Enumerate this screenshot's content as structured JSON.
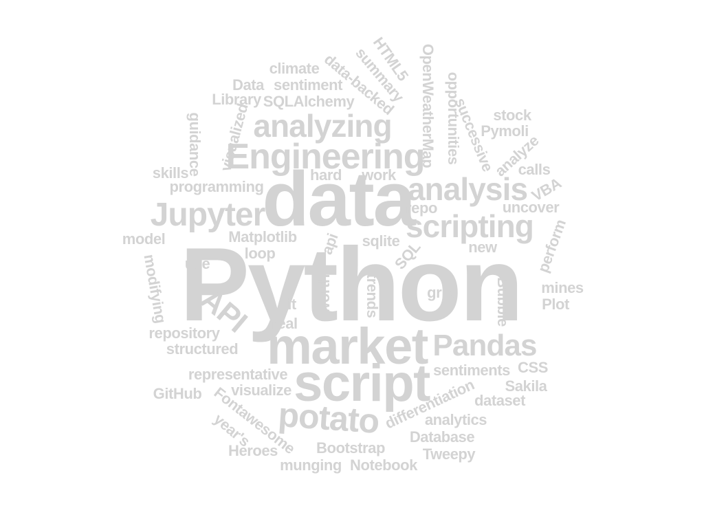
{
  "color": "#d3d3d3",
  "words": [
    "Python",
    "data",
    "market",
    "script",
    "Engineering",
    "analyzing",
    "analysis",
    "scripting",
    "Jupyter",
    "Pandas",
    "potato",
    "API",
    "Matplotlib",
    "sqlite",
    "climate",
    "Data",
    "sentiment",
    "Library",
    "SQLAlchemy",
    "HTML5",
    "summary",
    "data-backed",
    "OpenWeatherMap",
    "opportunities",
    "successive",
    "stock",
    "Pymoli",
    "analyze",
    "calls",
    "VBA",
    "uncover",
    "perform",
    "new",
    "repo",
    "guidance",
    "visualized",
    "skills",
    "programming",
    "hard",
    "work",
    "model",
    "loop",
    "use",
    "modifying",
    "api",
    "SQL",
    "trends",
    "worth",
    "git",
    "real",
    "grid",
    "Bubble",
    "mines",
    "Plot",
    "repository",
    "structured",
    "representative",
    "visualize",
    "GitHub",
    "Fontawesome",
    "year's",
    "Heroes",
    "sentiments",
    "CSS",
    "Sakila",
    "dataset",
    "differentiation",
    "analytics",
    "Database",
    "Tweepy",
    "Bootstrap",
    "munging",
    "Notebook"
  ]
}
